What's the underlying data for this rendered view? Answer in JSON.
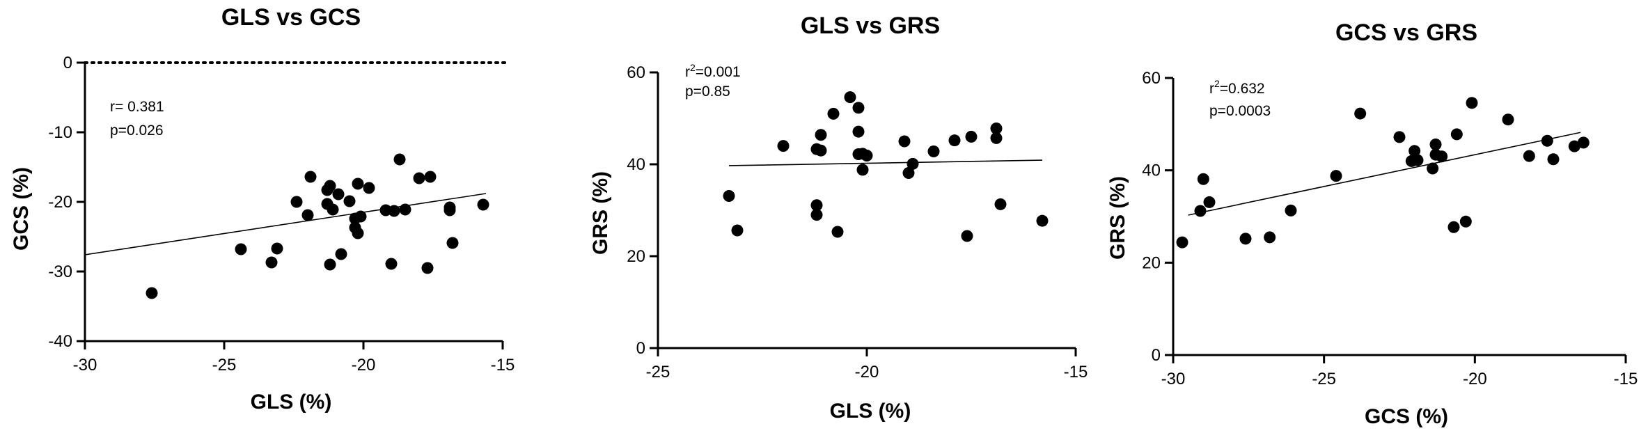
{
  "chart_data": [
    {
      "type": "scatter",
      "title": "GLS vs GCS",
      "xlabel": "GLS (%)",
      "ylabel": "GCS (%)",
      "xlim": [
        -30,
        -15
      ],
      "ylim": [
        -40,
        0
      ],
      "xticks": [
        -30,
        -25,
        -20,
        -15
      ],
      "yticks": [
        -40,
        -30,
        -20,
        -10,
        0
      ],
      "xtick_labels": [
        "-30",
        "-25",
        "-20",
        "-15"
      ],
      "ytick_labels": [
        "-40",
        "-30",
        "-20",
        "-10",
        "0"
      ],
      "reference_line_y": 0,
      "stat_lines": [
        "r= 0.381",
        "p=0.026"
      ],
      "fit": {
        "x": [
          -30,
          -15.6
        ],
        "y": [
          -27.6,
          -18.8
        ]
      },
      "points": [
        [
          -27.6,
          -33.1
        ],
        [
          -24.4,
          -26.8
        ],
        [
          -23.3,
          -28.7
        ],
        [
          -23.1,
          -26.7
        ],
        [
          -22.4,
          -20.0
        ],
        [
          -22.0,
          -21.9
        ],
        [
          -21.9,
          -16.4
        ],
        [
          -21.3,
          -18.3
        ],
        [
          -21.3,
          -20.3
        ],
        [
          -21.2,
          -29.0
        ],
        [
          -21.2,
          -17.7
        ],
        [
          -21.1,
          -21.1
        ],
        [
          -20.9,
          -18.9
        ],
        [
          -20.8,
          -27.5
        ],
        [
          -20.5,
          -19.9
        ],
        [
          -20.3,
          -22.4
        ],
        [
          -20.3,
          -23.7
        ],
        [
          -20.2,
          -17.4
        ],
        [
          -20.2,
          -24.5
        ],
        [
          -20.1,
          -22.1
        ],
        [
          -19.8,
          -18.0
        ],
        [
          -19.2,
          -21.2
        ],
        [
          -19.0,
          -28.9
        ],
        [
          -18.9,
          -21.3
        ],
        [
          -18.7,
          -13.9
        ],
        [
          -18.5,
          -21.1
        ],
        [
          -18.0,
          -16.6
        ],
        [
          -17.7,
          -29.5
        ],
        [
          -17.6,
          -16.4
        ],
        [
          -16.9,
          -20.8
        ],
        [
          -16.9,
          -21.2
        ],
        [
          -16.8,
          -25.9
        ],
        [
          -15.7,
          -20.4
        ]
      ]
    },
    {
      "type": "scatter",
      "title": "GLS vs GRS",
      "xlabel": "GLS (%)",
      "ylabel": "GRS (%)",
      "xlim": [
        -25,
        -15
      ],
      "ylim": [
        0,
        60
      ],
      "xticks": [
        -25,
        -20,
        -15
      ],
      "yticks": [
        0,
        20,
        40,
        60
      ],
      "xtick_labels": [
        "-25",
        "-20",
        "-15"
      ],
      "ytick_labels": [
        "0",
        "20",
        "40",
        "60"
      ],
      "stat_lines": [
        "r2=0.001",
        "p=0.85"
      ],
      "fit": {
        "x": [
          -23.3,
          -15.8
        ],
        "y": [
          39.7,
          40.9
        ]
      },
      "points": [
        [
          -23.3,
          33.1
        ],
        [
          -23.1,
          25.6
        ],
        [
          -22.0,
          44.0
        ],
        [
          -21.2,
          43.3
        ],
        [
          -21.2,
          31.1
        ],
        [
          -21.2,
          29.0
        ],
        [
          -21.1,
          46.4
        ],
        [
          -21.1,
          43.0
        ],
        [
          -20.8,
          51.0
        ],
        [
          -20.7,
          25.3
        ],
        [
          -20.4,
          54.6
        ],
        [
          -20.2,
          52.3
        ],
        [
          -20.2,
          47.1
        ],
        [
          -20.2,
          42.2
        ],
        [
          -20.1,
          38.8
        ],
        [
          -20.1,
          42.3
        ],
        [
          -20.0,
          41.9
        ],
        [
          -19.1,
          45.0
        ],
        [
          -19.0,
          38.1
        ],
        [
          -18.9,
          40.1
        ],
        [
          -18.4,
          42.8
        ],
        [
          -17.9,
          45.2
        ],
        [
          -17.6,
          24.4
        ],
        [
          -17.5,
          46.0
        ],
        [
          -16.9,
          47.8
        ],
        [
          -16.9,
          45.7
        ],
        [
          -16.8,
          31.3
        ],
        [
          -15.8,
          27.7
        ]
      ]
    },
    {
      "type": "scatter",
      "title": "GCS vs GRS",
      "xlabel": "GCS (%)",
      "ylabel": "GRS (%)",
      "xlim": [
        -30,
        -15
      ],
      "ylim": [
        0,
        60
      ],
      "xticks": [
        -30,
        -25,
        -20,
        -15
      ],
      "yticks": [
        0,
        20,
        40,
        60
      ],
      "xtick_labels": [
        "-30",
        "-25",
        "-20",
        "-15"
      ],
      "ytick_labels": [
        "0",
        "20",
        "40",
        "60"
      ],
      "stat_lines": [
        "r2=0.632",
        "p=0.0003"
      ],
      "fit": {
        "x": [
          -29.5,
          -16.5
        ],
        "y": [
          30.3,
          48.2
        ]
      },
      "points": [
        [
          -29.7,
          24.4
        ],
        [
          -29.1,
          31.2
        ],
        [
          -29.0,
          38.1
        ],
        [
          -28.8,
          33.1
        ],
        [
          -27.6,
          25.2
        ],
        [
          -26.8,
          25.5
        ],
        [
          -26.1,
          31.3
        ],
        [
          -24.6,
          38.8
        ],
        [
          -23.8,
          52.3
        ],
        [
          -22.5,
          47.2
        ],
        [
          -22.1,
          42.0
        ],
        [
          -22.0,
          44.2
        ],
        [
          -21.9,
          42.2
        ],
        [
          -21.4,
          40.4
        ],
        [
          -21.3,
          43.4
        ],
        [
          -21.3,
          45.6
        ],
        [
          -21.1,
          43.0
        ],
        [
          -20.7,
          27.7
        ],
        [
          -20.6,
          47.8
        ],
        [
          -20.3,
          28.9
        ],
        [
          -20.1,
          54.6
        ],
        [
          -18.9,
          51.0
        ],
        [
          -18.2,
          43.1
        ],
        [
          -17.6,
          46.4
        ],
        [
          -17.4,
          42.4
        ],
        [
          -16.7,
          45.2
        ],
        [
          -16.4,
          46.0
        ]
      ]
    }
  ]
}
